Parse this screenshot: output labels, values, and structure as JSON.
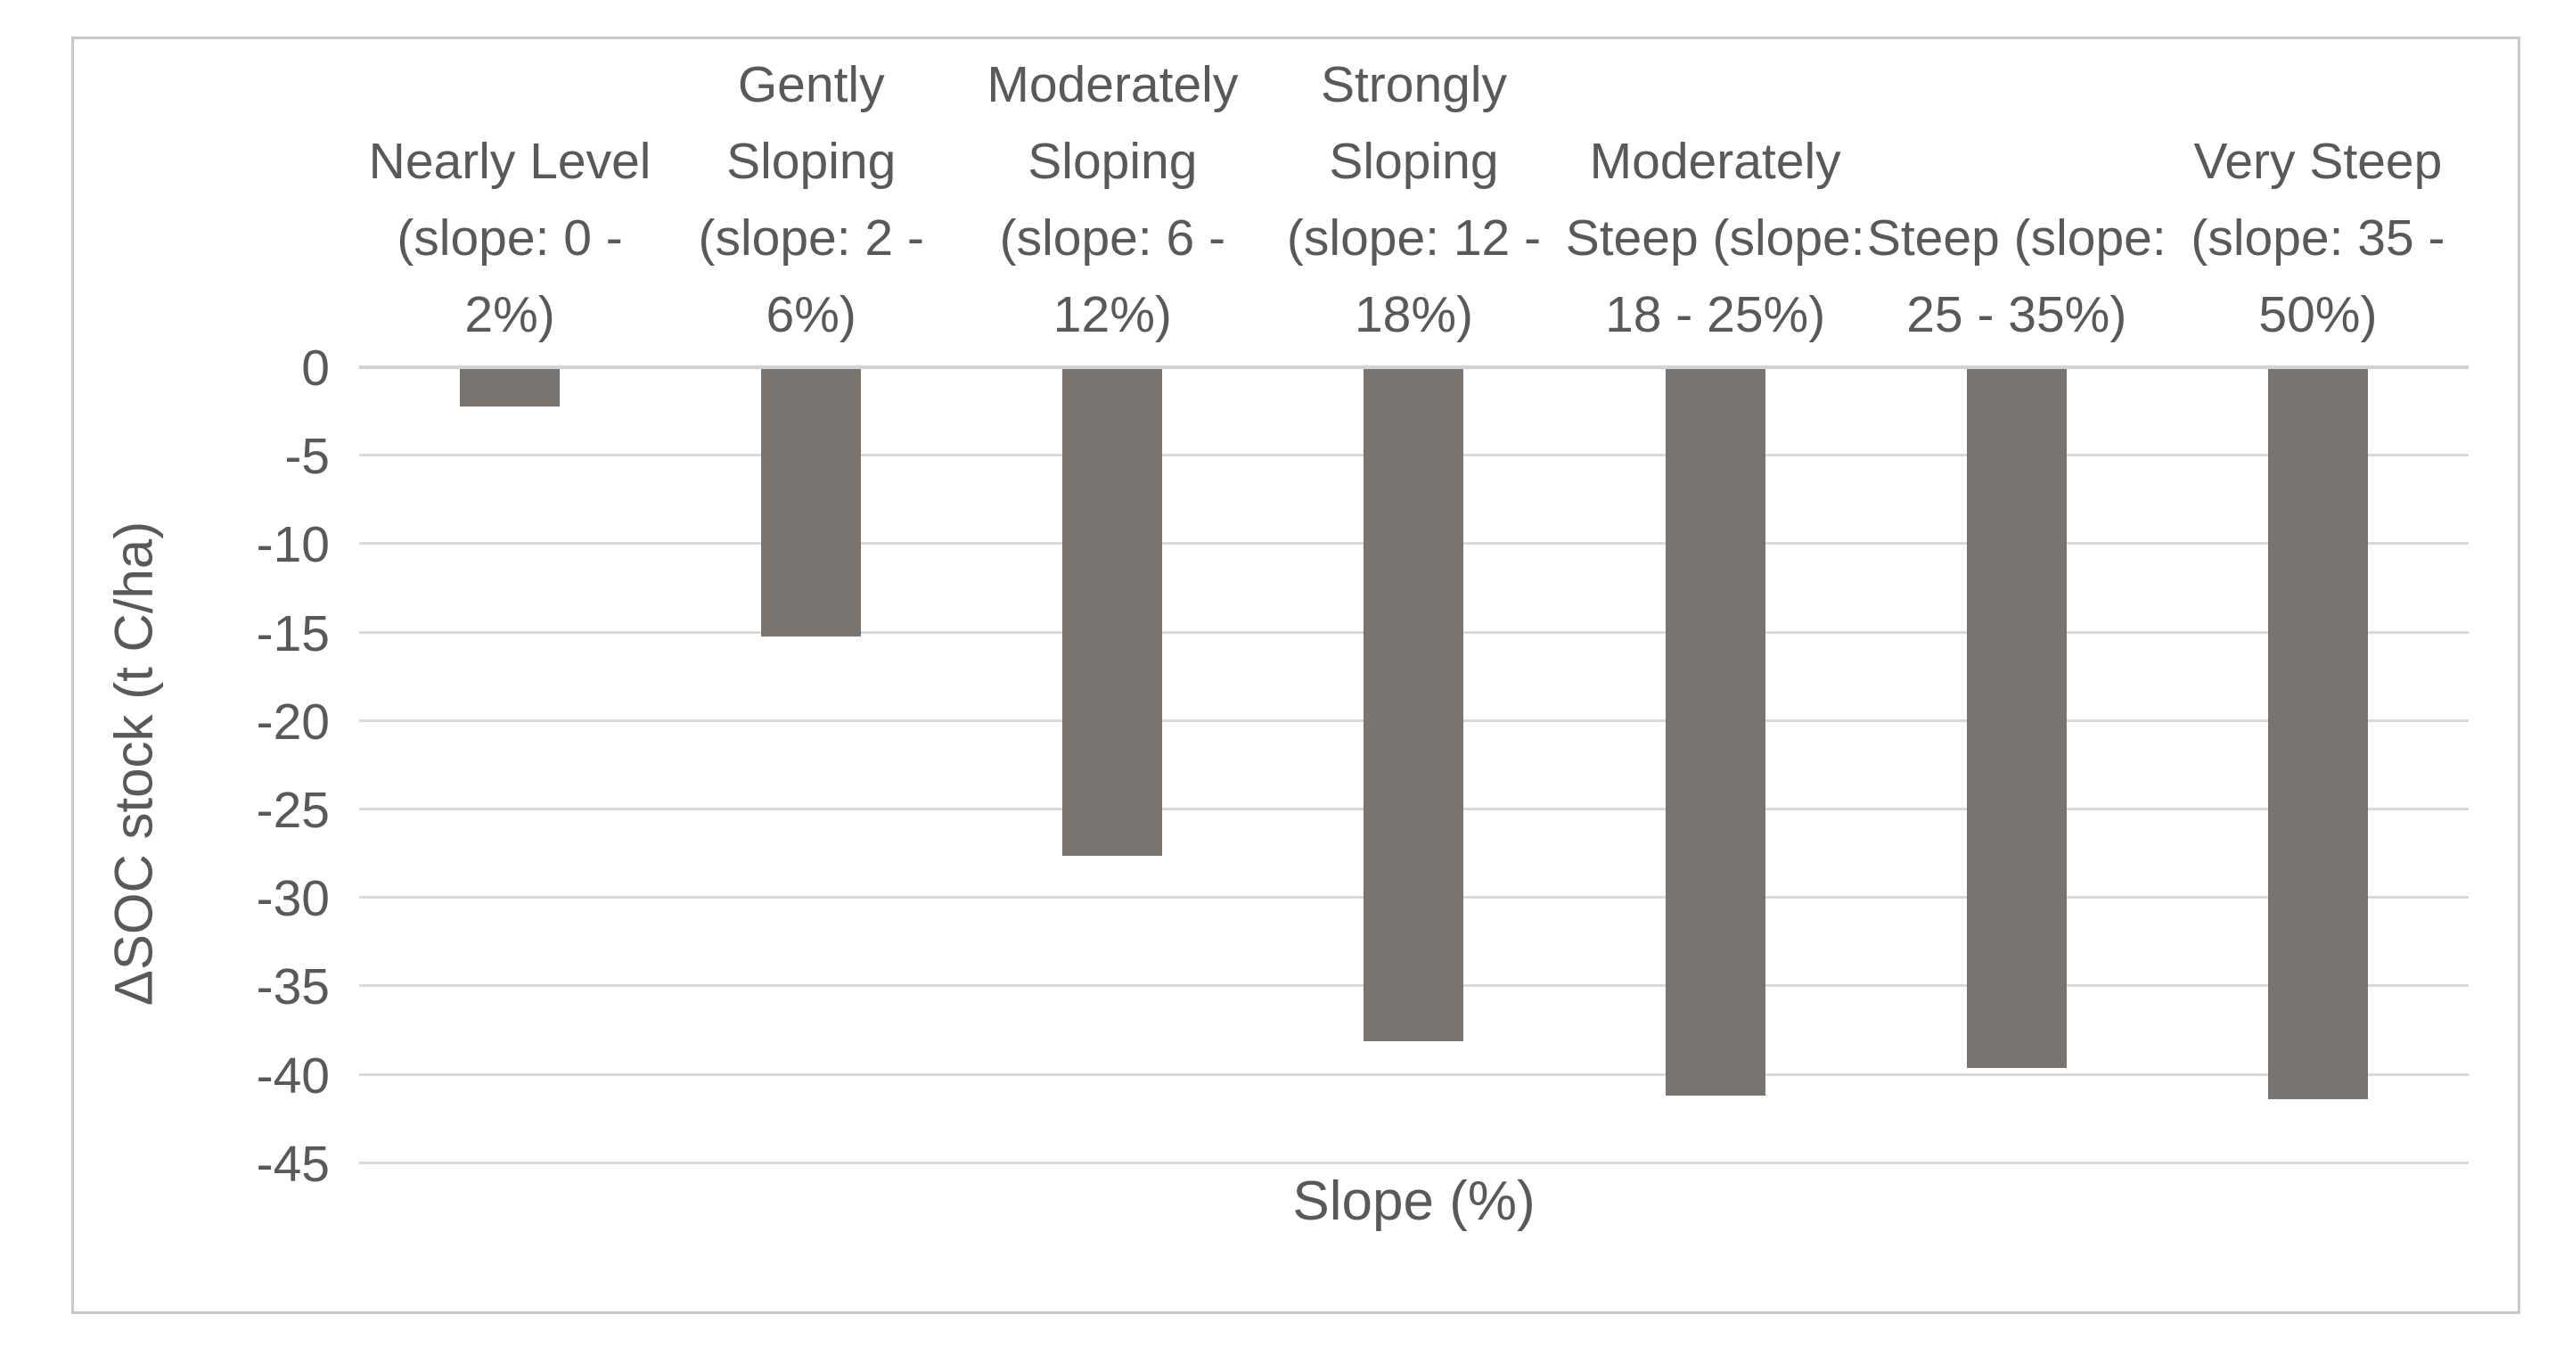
{
  "window": {
    "background": "#ffffff"
  },
  "colors": {
    "bar_fill": "#797470",
    "gridline": "#d9d9d9",
    "axis_line": "#d3d3d3",
    "label_text": "#595959",
    "frame_border": "#c9c9c9"
  },
  "chart_data": {
    "type": "bar",
    "title": "",
    "xlabel": "Slope (%)",
    "ylabel": "ΔSOC stock (t C/ha)",
    "categories": [
      "Nearly Level (slope: 0 - 2%)",
      "Gently Sloping (slope: 2 - 6%)",
      "Moderately Sloping (slope: 6 - 12%)",
      "Strongly Sloping (slope: 12 - 18%)",
      "Moderately Steep (slope: 18 - 25%)",
      "Steep (slope: 25 - 35%)",
      "Very Steep (slope: 35 - 50%)"
    ],
    "categories_display": [
      "Nearly Level\n(slope: 0 -\n2%)",
      "Gently\nSloping\n(slope: 2 -\n6%)",
      "Moderately\nSloping\n(slope: 6 -\n12%)",
      "Strongly\nSloping\n(slope: 12 -\n18%)",
      "Moderately\nSteep (slope:\n18 - 25%)",
      "Steep (slope:\n25 - 35%)",
      "Very Steep\n(slope: 35 -\n50%)"
    ],
    "values": [
      -2.1,
      -15.1,
      -27.5,
      -38.0,
      -41.1,
      -39.5,
      -41.3
    ],
    "series_name": "ΔSOC stock",
    "yticks": [
      0,
      -5,
      -10,
      -15,
      -20,
      -25,
      -30,
      -35,
      -40,
      -45
    ],
    "ytick_labels": [
      "0",
      "-5",
      "-10",
      "-15",
      "-20",
      "-25",
      "-30",
      "-35",
      "-40",
      "-45"
    ],
    "ylim": [
      -45,
      0
    ],
    "grid": true,
    "legend": false,
    "bar_color": "#797470"
  }
}
